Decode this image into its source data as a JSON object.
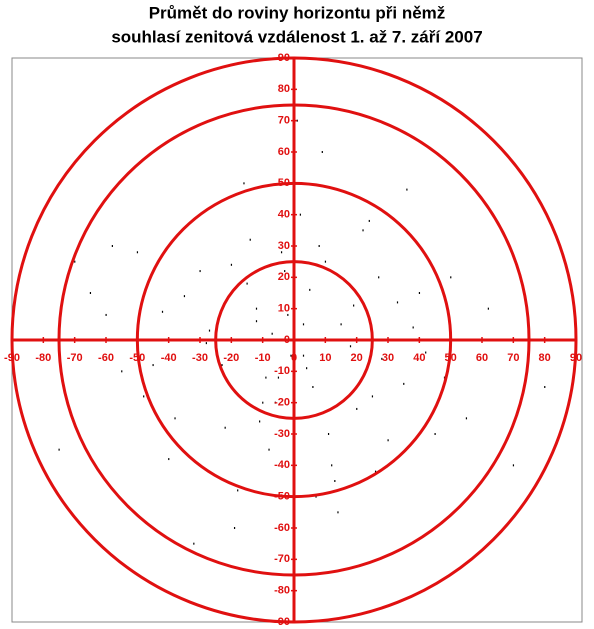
{
  "chart_data": {
    "type": "scatter",
    "title_lines": [
      "Průmět do roviny horizontu při němž",
      "souhlasí zenitová vzdálenost 1. až 7. září 2007"
    ],
    "xlim": [
      -90,
      90
    ],
    "ylim": [
      -90,
      90
    ],
    "xticks": [
      -90,
      -80,
      -70,
      -60,
      -50,
      -40,
      -30,
      -20,
      -10,
      0,
      10,
      20,
      30,
      40,
      50,
      60,
      70,
      80,
      90
    ],
    "yticks": [
      -90,
      -80,
      -70,
      -60,
      -50,
      -40,
      -30,
      -20,
      -10,
      0,
      10,
      20,
      30,
      40,
      50,
      60,
      70,
      80,
      90
    ],
    "circles": [
      25,
      50,
      75,
      90
    ],
    "axis_color": "#e01010",
    "color": "#000000",
    "x": [
      3,
      -12,
      25,
      -30,
      8,
      -5,
      15,
      -22,
      40,
      -45,
      2,
      -8,
      18,
      -15,
      33,
      -38,
      12,
      -2,
      6,
      -27,
      50,
      -55,
      22,
      -18,
      10,
      -35,
      28,
      -10,
      0,
      45,
      -60,
      14,
      -4,
      35,
      -25,
      5,
      -14,
      20,
      -40,
      62,
      -48,
      9,
      -1,
      26,
      -20,
      38,
      -32,
      16,
      -7,
      55,
      -65,
      4,
      -16,
      30,
      -12,
      7,
      -3,
      42,
      -50,
      70,
      -70,
      11,
      -9,
      24,
      -28,
      1,
      -6,
      19,
      -23,
      36,
      -42,
      13,
      -11,
      48,
      -58,
      80,
      -75,
      3,
      -19,
      27
    ],
    "values": [
      -5,
      10,
      -18,
      22,
      30,
      -12,
      5,
      -28,
      15,
      -8,
      40,
      -35,
      -2,
      18,
      12,
      -25,
      -40,
      8,
      -15,
      3,
      20,
      -10,
      35,
      -48,
      25,
      14,
      -6,
      -20,
      45,
      -30,
      8,
      -55,
      28,
      -14,
      -3,
      16,
      32,
      -22,
      -38,
      10,
      -18,
      60,
      -5,
      -42,
      24,
      4,
      -65,
      19,
      2,
      -25,
      15,
      -9,
      50,
      -32,
      6,
      -50,
      22,
      -4,
      28,
      -40,
      25,
      -30,
      -12,
      38,
      -1,
      70,
      -20,
      11,
      -8,
      48,
      9,
      -45,
      -26,
      -12,
      30,
      -15,
      -35,
      5,
      -60,
      20
    ]
  }
}
